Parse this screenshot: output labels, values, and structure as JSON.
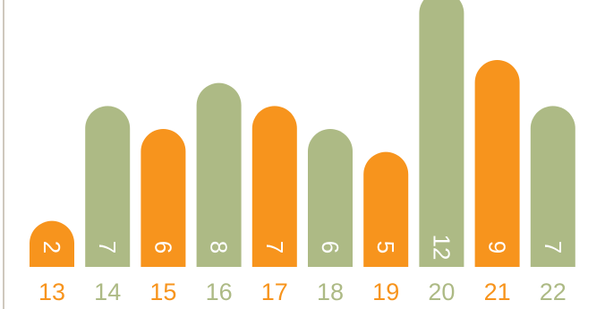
{
  "chart_data": {
    "type": "bar",
    "categories": [
      "13",
      "14",
      "15",
      "16",
      "17",
      "18",
      "19",
      "20",
      "21",
      "22"
    ],
    "values": [
      2,
      7,
      6,
      8,
      7,
      6,
      5,
      12,
      9,
      7
    ],
    "title": "",
    "xlabel": "",
    "ylabel": "",
    "ylim": [
      0,
      12
    ],
    "grid": false,
    "legend": "none"
  },
  "colors": {
    "orange": "#f7941d",
    "green": "#adba85",
    "axis": "#cfc8bd",
    "bar_label": "#ffffff"
  },
  "bar_color_pattern": [
    "orange",
    "green"
  ]
}
